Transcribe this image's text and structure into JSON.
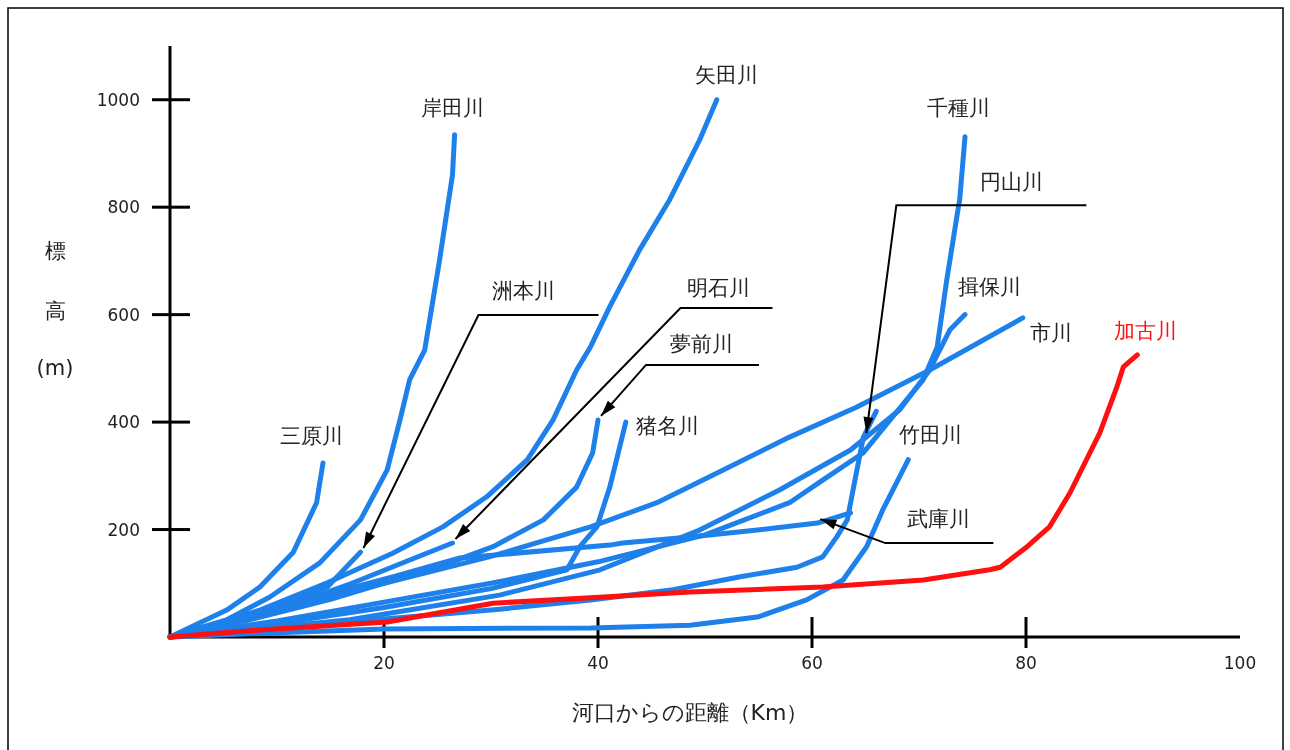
{
  "chart_data": {
    "type": "line",
    "xlabel": "河口からの距離（Km）",
    "ylabel": "標高(m)",
    "xlim": [
      0,
      100
    ],
    "ylim": [
      0,
      1100
    ],
    "xticks": [
      20,
      40,
      60,
      80,
      100
    ],
    "yticks": [
      200,
      400,
      600,
      800,
      1000
    ],
    "grid": false,
    "legend": false,
    "marker": "none",
    "line_style": "solid",
    "series": [
      {
        "name": "三原川",
        "color": "#1e80ea",
        "x": [
          14.3,
          13.7,
          11.5,
          8.4,
          5.3,
          0
        ],
        "values": [
          324,
          250,
          157,
          93,
          50,
          0
        ]
      },
      {
        "name": "岸田川",
        "color": "#1e80ea",
        "x": [
          26.6,
          26.4,
          25.2,
          23.8,
          22.4,
          21.5,
          20.3,
          17.8,
          14.0,
          9.3,
          5.3,
          0
        ],
        "values": [
          935,
          860,
          702,
          534,
          479,
          404,
          311,
          218,
          138,
          74,
          32,
          0
        ]
      },
      {
        "name": "矢田川",
        "color": "#1e80ea",
        "x": [
          51.1,
          49.5,
          46.7,
          43.9,
          41.1,
          39.3,
          38.0,
          35.8,
          33.4,
          29.6,
          25.5,
          20.8,
          14.7,
          8.4,
          0
        ],
        "values": [
          1000,
          925,
          814,
          721,
          615,
          540,
          497,
          404,
          330,
          261,
          205,
          156,
          101,
          50,
          0
        ]
      },
      {
        "name": "洲本川",
        "color": "#1e80ea",
        "x": [
          17.8,
          16,
          14.7,
          10,
          5,
          0
        ],
        "values": [
          158,
          120,
          93,
          55,
          25,
          0
        ]
      },
      {
        "name": "明石川",
        "color": "#1e80ea",
        "x": [
          26.4,
          22,
          17,
          10,
          0
        ],
        "values": [
          175,
          140,
          100,
          50,
          0
        ]
      },
      {
        "name": "夢前川",
        "color": "#1e80ea",
        "x": [
          40.0,
          39.5,
          38.0,
          34.9,
          30.2,
          25,
          15,
          7,
          0
        ],
        "values": [
          404,
          343,
          279,
          218,
          168,
          130,
          70,
          30,
          0
        ]
      },
      {
        "name": "猪名川",
        "color": "#1e80ea",
        "x": [
          42.6,
          41.1,
          39.9,
          38.3,
          37.1,
          30,
          20,
          10,
          0
        ],
        "values": [
          400,
          279,
          205,
          168,
          125,
          90,
          55,
          25,
          0
        ]
      },
      {
        "name": "武庫川",
        "color": "#1e80ea",
        "x": [
          63.6,
          60.5,
          54.9,
          48.6,
          42.3,
          41.1,
          27.1,
          20.8,
          10,
          0
        ],
        "values": [
          231,
          212,
          199,
          186,
          175,
          171,
          147,
          112,
          55,
          0
        ]
      },
      {
        "name": "千種川",
        "color": "#1e80ea",
        "x": [
          74.3,
          73.8,
          73.6,
          72.6,
          71.7,
          70.4,
          67.3,
          64.8,
          61.0,
          57.9,
          50,
          40,
          30,
          20,
          10,
          0
        ],
        "values": [
          931,
          814,
          790,
          665,
          540,
          479,
          404,
          343,
          292,
          250,
          190,
          140,
          100,
          65,
          30,
          0
        ]
      },
      {
        "name": "円山川",
        "color": "#1e80ea",
        "x": [
          66.0,
          64.8,
          64.2,
          63.3,
          62.3,
          61.0,
          58.6,
          53.3,
          47.0,
          39.3,
          30,
          15,
          0
        ],
        "values": [
          420,
          372,
          311,
          218,
          186,
          149,
          130,
          112,
          88,
          69,
          50,
          25,
          0
        ]
      },
      {
        "name": "揖保川",
        "color": "#1e80ea",
        "x": [
          74.3,
          72.9,
          71.0,
          68.2,
          63.6,
          57,
          49.5,
          40.2,
          30.8,
          16.8,
          0
        ],
        "values": [
          600,
          572,
          497,
          423,
          348,
          274,
          199,
          125,
          78,
          32,
          0
        ]
      },
      {
        "name": "市川",
        "color": "#1e80ea",
        "x": [
          79.7,
          71.0,
          64.2,
          57.9,
          51.7,
          45.5,
          39.3,
          30,
          20,
          10,
          0
        ],
        "values": [
          594,
          497,
          428,
          372,
          311,
          250,
          205,
          150,
          100,
          50,
          0
        ]
      },
      {
        "name": "竹田川",
        "color": "#1e80ea",
        "x": [
          69.0,
          66.6,
          65.1,
          62.9,
          59.5,
          54.9,
          48.6,
          39.3,
          20,
          10,
          0
        ],
        "values": [
          330,
          236,
          168,
          106,
          69,
          37,
          22,
          17,
          15,
          8,
          0
        ]
      },
      {
        "name": "加古川",
        "color": "#ff1010",
        "x": [
          90.4,
          89.1,
          88.5,
          86.9,
          84.1,
          82.2,
          80.1,
          77.6,
          76.6,
          70.4,
          61.0,
          48.6,
          39.3,
          30.2,
          20.3,
          8.4,
          0
        ],
        "values": [
          525,
          503,
          466,
          380,
          268,
          205,
          168,
          130,
          125,
          106,
          93,
          84,
          73,
          63,
          28,
          13,
          0
        ]
      }
    ]
  }
}
